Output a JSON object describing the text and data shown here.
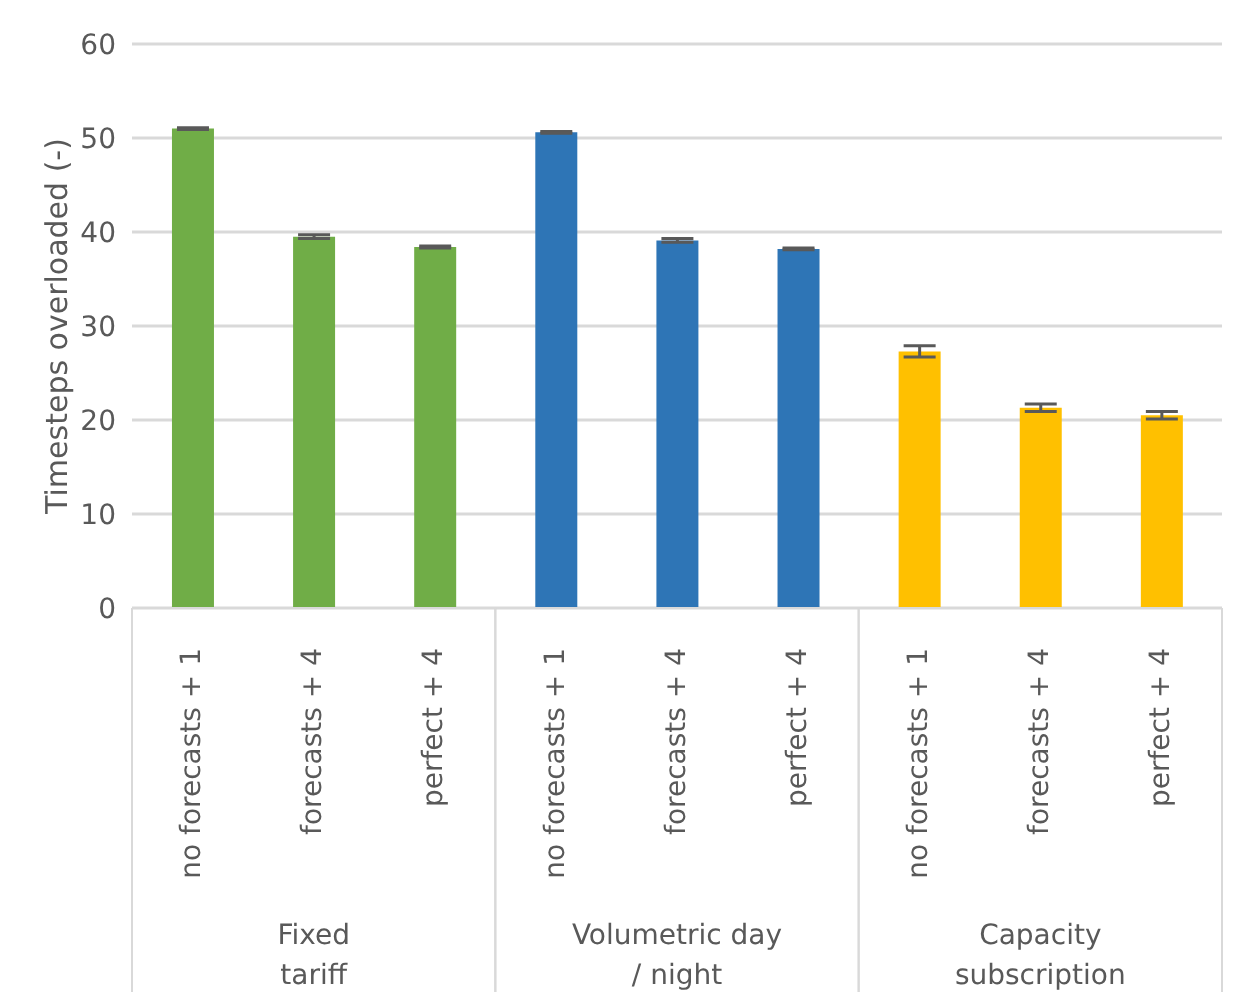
{
  "chart_data": {
    "type": "bar",
    "ylabel": "Timesteps overloaded (-)",
    "categories": [
      "no forecasts + 1",
      "forecasts + 4",
      "perfect + 4",
      "no forecasts + 1",
      "forecasts + 4",
      "perfect + 4",
      "no forecasts + 1",
      "forecasts + 4",
      "perfect + 4"
    ],
    "values": [
      51.0,
      39.5,
      38.4,
      50.6,
      39.1,
      38.2,
      27.3,
      21.3,
      20.5
    ],
    "errors": [
      0.1,
      0.2,
      0.1,
      0.1,
      0.2,
      0.1,
      0.6,
      0.4,
      0.4
    ],
    "colors": [
      "#70ad47",
      "#70ad47",
      "#70ad47",
      "#2e75b6",
      "#2e75b6",
      "#2e75b6",
      "#ffc000",
      "#ffc000",
      "#ffc000"
    ],
    "annotations": [
      "Fixed tariff",
      "Volumetric day / night",
      "Capacity subscription"
    ],
    "ylim": [
      0,
      60
    ],
    "yticks": [
      0,
      10,
      20,
      30,
      40,
      50,
      60
    ],
    "grid": "y",
    "legend": false
  }
}
